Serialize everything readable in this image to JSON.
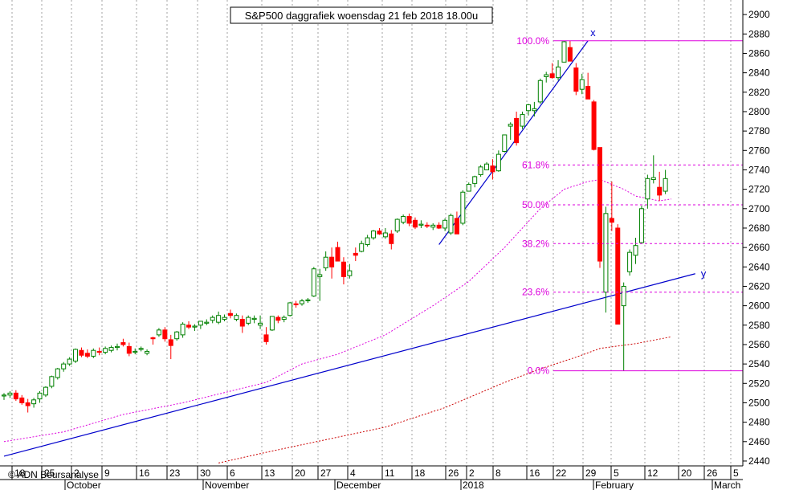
{
  "chart_data": {
    "type": "candlestick",
    "title": "S&P500 daggrafiek woensdag 21 feb 2018 18.00u",
    "watermark": "© ADN Beursanalyse",
    "y_range": [
      2435,
      2915
    ],
    "y_ticks": [
      2440,
      2460,
      2480,
      2500,
      2520,
      2540,
      2560,
      2580,
      2600,
      2620,
      2640,
      2660,
      2680,
      2700,
      2720,
      2740,
      2760,
      2780,
      2800,
      2820,
      2840,
      2860,
      2880,
      2900
    ],
    "x_day_labels": [
      "18",
      "25",
      "2",
      "9",
      "16",
      "23",
      "30",
      "6",
      "13",
      "20",
      "27",
      "4",
      "11",
      "18",
      "26",
      "2",
      "8",
      "16",
      "22",
      "29",
      "5",
      "12",
      "20",
      "26",
      "5"
    ],
    "x_month_labels": [
      "October",
      "November",
      "December",
      "2018",
      "February",
      "March"
    ],
    "colors": {
      "up_candle": "#008000",
      "down_candle": "#ff0000",
      "trendline": "#0000cc",
      "fib": "#dd00dd",
      "ma_short": "#dd00dd",
      "ma_long": "#cc0000",
      "grid": "#a0a0a0",
      "axis": "#000000",
      "background": "#ffffff"
    },
    "candles": [
      {
        "o": 2507,
        "h": 2510,
        "l": 2503,
        "c": 2508
      },
      {
        "o": 2508,
        "h": 2512,
        "l": 2505,
        "c": 2510
      },
      {
        "o": 2510,
        "h": 2513,
        "l": 2502,
        "c": 2504
      },
      {
        "o": 2505,
        "h": 2508,
        "l": 2498,
        "c": 2500
      },
      {
        "o": 2500,
        "h": 2504,
        "l": 2490,
        "c": 2497
      },
      {
        "o": 2499,
        "h": 2505,
        "l": 2495,
        "c": 2503
      },
      {
        "o": 2504,
        "h": 2512,
        "l": 2500,
        "c": 2510
      },
      {
        "o": 2508,
        "h": 2517,
        "l": 2506,
        "c": 2516
      },
      {
        "o": 2517,
        "h": 2528,
        "l": 2515,
        "c": 2527
      },
      {
        "o": 2526,
        "h": 2536,
        "l": 2524,
        "c": 2535
      },
      {
        "o": 2535,
        "h": 2542,
        "l": 2532,
        "c": 2540
      },
      {
        "o": 2540,
        "h": 2547,
        "l": 2538,
        "c": 2545
      },
      {
        "o": 2543,
        "h": 2556,
        "l": 2541,
        "c": 2555
      },
      {
        "o": 2554,
        "h": 2557,
        "l": 2547,
        "c": 2549
      },
      {
        "o": 2551,
        "h": 2555,
        "l": 2546,
        "c": 2548
      },
      {
        "o": 2548,
        "h": 2556,
        "l": 2546,
        "c": 2554
      },
      {
        "o": 2553,
        "h": 2557,
        "l": 2549,
        "c": 2552
      },
      {
        "o": 2552,
        "h": 2558,
        "l": 2550,
        "c": 2556
      },
      {
        "o": 2554,
        "h": 2559,
        "l": 2552,
        "c": 2557
      },
      {
        "o": 2557,
        "h": 2561,
        "l": 2554,
        "c": 2558
      },
      {
        "o": 2562,
        "h": 2566,
        "l": 2558,
        "c": 2560
      },
      {
        "o": 2558,
        "h": 2562,
        "l": 2548,
        "c": 2551
      },
      {
        "o": 2552,
        "h": 2556,
        "l": 2550,
        "c": 2553
      },
      {
        "o": 2555,
        "h": 2558,
        "l": 2553,
        "c": 2556
      },
      {
        "o": 2551,
        "h": 2555,
        "l": 2549,
        "c": 2553
      },
      {
        "o": 2567,
        "h": 2568,
        "l": 2560,
        "c": 2566
      },
      {
        "o": 2570,
        "h": 2577,
        "l": 2568,
        "c": 2575
      },
      {
        "o": 2575,
        "h": 2578,
        "l": 2563,
        "c": 2566
      },
      {
        "o": 2565,
        "h": 2570,
        "l": 2545,
        "c": 2559
      },
      {
        "o": 2566,
        "h": 2574,
        "l": 2564,
        "c": 2573
      },
      {
        "o": 2570,
        "h": 2583,
        "l": 2567,
        "c": 2581
      },
      {
        "o": 2580,
        "h": 2584,
        "l": 2576,
        "c": 2578
      },
      {
        "o": 2578,
        "h": 2581,
        "l": 2574,
        "c": 2579
      },
      {
        "o": 2580,
        "h": 2584,
        "l": 2576,
        "c": 2584
      },
      {
        "o": 2582,
        "h": 2586,
        "l": 2580,
        "c": 2583
      },
      {
        "o": 2585,
        "h": 2590,
        "l": 2582,
        "c": 2588
      },
      {
        "o": 2583,
        "h": 2594,
        "l": 2581,
        "c": 2590
      },
      {
        "o": 2586,
        "h": 2591,
        "l": 2584,
        "c": 2588
      },
      {
        "o": 2592,
        "h": 2596,
        "l": 2587,
        "c": 2590
      },
      {
        "o": 2586,
        "h": 2592,
        "l": 2584,
        "c": 2590
      },
      {
        "o": 2586,
        "h": 2590,
        "l": 2572,
        "c": 2579
      },
      {
        "o": 2582,
        "h": 2590,
        "l": 2580,
        "c": 2588
      },
      {
        "o": 2586,
        "h": 2590,
        "l": 2582,
        "c": 2587
      },
      {
        "o": 2580,
        "h": 2590,
        "l": 2576,
        "c": 2582
      },
      {
        "o": 2570,
        "h": 2578,
        "l": 2560,
        "c": 2563
      },
      {
        "o": 2575,
        "h": 2589,
        "l": 2574,
        "c": 2589
      },
      {
        "o": 2588,
        "h": 2590,
        "l": 2582,
        "c": 2585
      },
      {
        "o": 2586,
        "h": 2590,
        "l": 2583,
        "c": 2588
      },
      {
        "o": 2590,
        "h": 2604,
        "l": 2589,
        "c": 2603
      },
      {
        "o": 2602,
        "h": 2605,
        "l": 2598,
        "c": 2601
      },
      {
        "o": 2602,
        "h": 2607,
        "l": 2600,
        "c": 2605
      },
      {
        "o": 2606,
        "h": 2608,
        "l": 2603,
        "c": 2606
      },
      {
        "o": 2610,
        "h": 2640,
        "l": 2609,
        "c": 2638
      },
      {
        "o": 2630,
        "h": 2638,
        "l": 2605,
        "c": 2632
      },
      {
        "o": 2639,
        "h": 2656,
        "l": 2636,
        "c": 2650
      },
      {
        "o": 2650,
        "h": 2660,
        "l": 2628,
        "c": 2640
      },
      {
        "o": 2660,
        "h": 2666,
        "l": 2650,
        "c": 2646
      },
      {
        "o": 2645,
        "h": 2650,
        "l": 2622,
        "c": 2630
      },
      {
        "o": 2631,
        "h": 2643,
        "l": 2628,
        "c": 2636
      },
      {
        "o": 2654,
        "h": 2660,
        "l": 2646,
        "c": 2652
      },
      {
        "o": 2656,
        "h": 2667,
        "l": 2655,
        "c": 2664
      },
      {
        "o": 2663,
        "h": 2673,
        "l": 2661,
        "c": 2670
      },
      {
        "o": 2670,
        "h": 2678,
        "l": 2668,
        "c": 2677
      },
      {
        "o": 2677,
        "h": 2680,
        "l": 2673,
        "c": 2674
      },
      {
        "o": 2671,
        "h": 2680,
        "l": 2669,
        "c": 2675
      },
      {
        "o": 2674,
        "h": 2678,
        "l": 2658,
        "c": 2664
      },
      {
        "o": 2677,
        "h": 2690,
        "l": 2675,
        "c": 2689
      },
      {
        "o": 2686,
        "h": 2694,
        "l": 2684,
        "c": 2692
      },
      {
        "o": 2692,
        "h": 2695,
        "l": 2682,
        "c": 2685
      },
      {
        "o": 2688,
        "h": 2691,
        "l": 2679,
        "c": 2681
      },
      {
        "o": 2683,
        "h": 2688,
        "l": 2680,
        "c": 2684
      },
      {
        "o": 2683,
        "h": 2686,
        "l": 2680,
        "c": 2682
      },
      {
        "o": 2681,
        "h": 2685,
        "l": 2678,
        "c": 2683
      },
      {
        "o": 2683,
        "h": 2686,
        "l": 2679,
        "c": 2680
      },
      {
        "o": 2680,
        "h": 2690,
        "l": 2677,
        "c": 2688
      },
      {
        "o": 2675,
        "h": 2695,
        "l": 2673,
        "c": 2693
      },
      {
        "o": 2690,
        "h": 2697,
        "l": 2676,
        "c": 2674
      },
      {
        "o": 2685,
        "h": 2719,
        "l": 2683,
        "c": 2717
      },
      {
        "o": 2718,
        "h": 2727,
        "l": 2718,
        "c": 2725
      },
      {
        "o": 2726,
        "h": 2734,
        "l": 2722,
        "c": 2733
      },
      {
        "o": 2735,
        "h": 2745,
        "l": 2733,
        "c": 2743
      },
      {
        "o": 2740,
        "h": 2748,
        "l": 2740,
        "c": 2746
      },
      {
        "o": 2744,
        "h": 2751,
        "l": 2730,
        "c": 2738
      },
      {
        "o": 2739,
        "h": 2760,
        "l": 2738,
        "c": 2756
      },
      {
        "o": 2759,
        "h": 2776,
        "l": 2758,
        "c": 2776
      },
      {
        "o": 2785,
        "h": 2789,
        "l": 2771,
        "c": 2787
      },
      {
        "o": 2793,
        "h": 2800,
        "l": 2765,
        "c": 2768
      },
      {
        "o": 2785,
        "h": 2800,
        "l": 2782,
        "c": 2797
      },
      {
        "o": 2801,
        "h": 2808,
        "l": 2796,
        "c": 2807
      },
      {
        "o": 2801,
        "h": 2810,
        "l": 2795,
        "c": 2803
      },
      {
        "o": 2810,
        "h": 2834,
        "l": 2808,
        "c": 2832
      },
      {
        "o": 2836,
        "h": 2841,
        "l": 2830,
        "c": 2838
      },
      {
        "o": 2839,
        "h": 2850,
        "l": 2834,
        "c": 2835
      },
      {
        "o": 2835,
        "h": 2853,
        "l": 2832,
        "c": 2846
      },
      {
        "o": 2851,
        "h": 2873,
        "l": 2851,
        "c": 2872
      },
      {
        "o": 2866,
        "h": 2873,
        "l": 2854,
        "c": 2852
      },
      {
        "o": 2845,
        "h": 2850,
        "l": 2817,
        "c": 2821
      },
      {
        "o": 2823,
        "h": 2839,
        "l": 2818,
        "c": 2833
      },
      {
        "o": 2826,
        "h": 2840,
        "l": 2815,
        "c": 2813
      },
      {
        "o": 2810,
        "h": 2812,
        "l": 2760,
        "c": 2761
      },
      {
        "o": 2763,
        "h": 2763,
        "l": 2639,
        "c": 2646
      },
      {
        "o": 2614,
        "h": 2702,
        "l": 2593,
        "c": 2695
      },
      {
        "o": 2690,
        "h": 2728,
        "l": 2677,
        "c": 2686
      },
      {
        "o": 2680,
        "h": 2684,
        "l": 2581,
        "c": 2581
      },
      {
        "o": 2600,
        "h": 2624,
        "l": 2533,
        "c": 2620
      },
      {
        "o": 2635,
        "h": 2658,
        "l": 2631,
        "c": 2655
      },
      {
        "o": 2652,
        "h": 2670,
        "l": 2643,
        "c": 2662
      },
      {
        "o": 2665,
        "h": 2703,
        "l": 2664,
        "c": 2700
      },
      {
        "o": 2710,
        "h": 2735,
        "l": 2700,
        "c": 2731
      },
      {
        "o": 2730,
        "h": 2755,
        "l": 2726,
        "c": 2732
      },
      {
        "o": 2722,
        "h": 2738,
        "l": 2708,
        "c": 2714
      },
      {
        "o": 2718,
        "h": 2740,
        "l": 2715,
        "c": 2731
      }
    ],
    "fibonacci": {
      "labels": [
        "100.0%",
        "61.8%",
        "50.0%",
        "38.2%",
        "23.6%",
        "0.0%"
      ],
      "levels": [
        2873,
        2745,
        2704,
        2664,
        2614,
        2533
      ]
    },
    "annotations": {
      "x_label": "x",
      "y_label": "y",
      "trend_up": {
        "from": [
          73,
          2663
        ],
        "to": [
          98,
          2873
        ]
      },
      "trend_long": {
        "from": [
          0,
          2445
        ],
        "to": [
          116,
          2633
        ]
      }
    },
    "ma_short": [
      [
        0,
        2460
      ],
      [
        10,
        2470
      ],
      [
        20,
        2488
      ],
      [
        30,
        2500
      ],
      [
        40,
        2515
      ],
      [
        44,
        2521
      ],
      [
        50,
        2540
      ],
      [
        56,
        2550
      ],
      [
        64,
        2570
      ],
      [
        72,
        2600
      ],
      [
        78,
        2625
      ],
      [
        84,
        2660
      ],
      [
        90,
        2700
      ],
      [
        94,
        2720
      ],
      [
        98,
        2728
      ],
      [
        100,
        2730
      ],
      [
        104,
        2720
      ],
      [
        106,
        2713
      ],
      [
        110,
        2708
      ],
      [
        112,
        2710
      ]
    ],
    "ma_long": [
      [
        36,
        2438
      ],
      [
        44,
        2449
      ],
      [
        54,
        2462
      ],
      [
        64,
        2475
      ],
      [
        74,
        2495
      ],
      [
        84,
        2521
      ],
      [
        90,
        2535
      ],
      [
        96,
        2547
      ],
      [
        100,
        2556
      ],
      [
        106,
        2561
      ],
      [
        112,
        2568
      ]
    ]
  }
}
